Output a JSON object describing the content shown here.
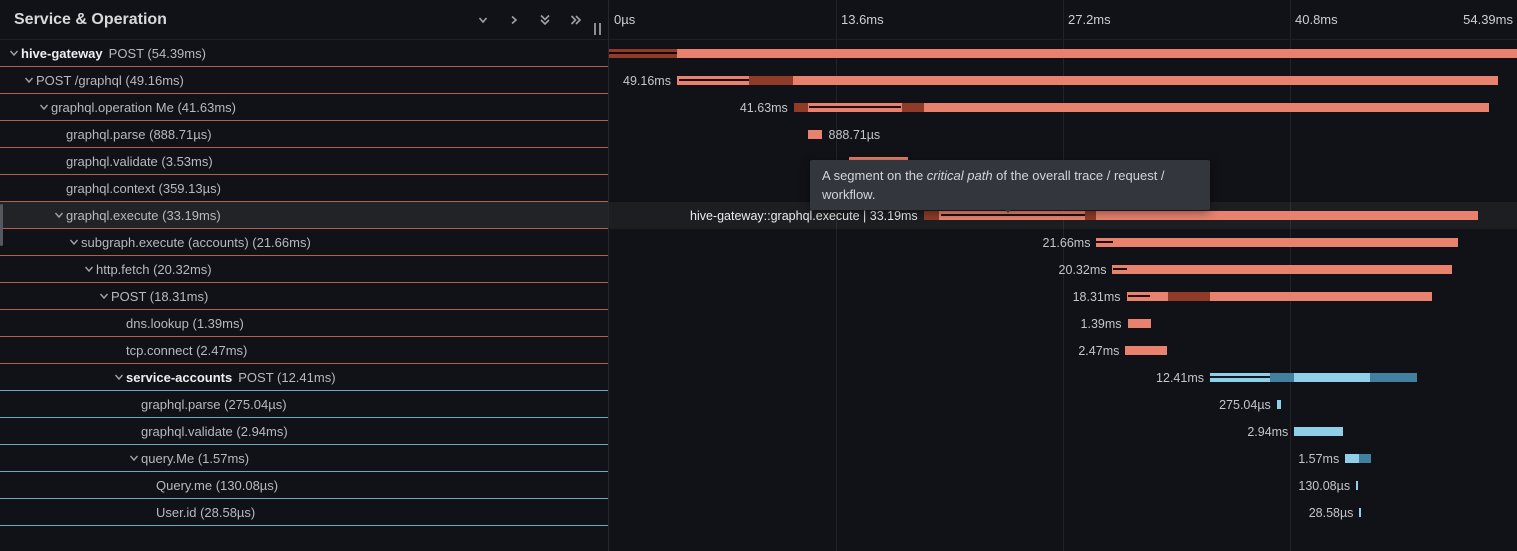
{
  "left_panel": {
    "title": "Service & Operation"
  },
  "toolbar": {
    "items": [
      {
        "name": "chevron-down-icon"
      },
      {
        "name": "chevron-right-icon"
      },
      {
        "name": "double-chevron-down-icon"
      },
      {
        "name": "double-chevron-right-icon"
      }
    ]
  },
  "colors": {
    "bar_red": "#e8826e",
    "bar_red_dark": "#8f3b28",
    "bar_blue": "#8fd0e8",
    "bar_blue_dark": "#41809f",
    "border_red": "#b3604e",
    "border_blue": "#6fa8c2",
    "background": "#111217"
  },
  "timeline": {
    "max_ms": 54.39,
    "ticks": [
      {
        "label": "0µs",
        "pct": 0,
        "align": "left"
      },
      {
        "label": "13.6ms",
        "pct": 25,
        "align": "mid"
      },
      {
        "label": "27.2ms",
        "pct": 50,
        "align": "mid"
      },
      {
        "label": "40.8ms",
        "pct": 75,
        "align": "mid"
      },
      {
        "label": "54.39ms",
        "pct": 100,
        "align": "right"
      }
    ],
    "gridlines_pct": [
      25,
      50,
      75
    ]
  },
  "tooltip": {
    "prefix": "A segment on the ",
    "em": "critical path",
    "suffix": " of the overall trace / request / workflow."
  },
  "rows": [
    {
      "depth": 0,
      "expandable": true,
      "service": "hive-gateway",
      "label": "POST (54.39ms)",
      "color": "red",
      "hovered": false,
      "bar": {
        "start": 0,
        "dur": 54.39
      },
      "dark": [
        [
          0,
          4.05
        ]
      ],
      "crit": [
        [
          0,
          4.05
        ]
      ],
      "tl_label": null,
      "side": "left",
      "bright": false
    },
    {
      "depth": 1,
      "expandable": true,
      "service": null,
      "label": "POST /graphql (49.16ms)",
      "color": "red",
      "hovered": false,
      "bar": {
        "start": 4.07,
        "dur": 49.16
      },
      "dark": [
        [
          8.4,
          2.65
        ]
      ],
      "crit": [
        [
          4.2,
          4.2
        ]
      ],
      "tl_label": "49.16ms",
      "side": "left",
      "bright": false
    },
    {
      "depth": 2,
      "expandable": true,
      "service": null,
      "label": "graphql.operation Me (41.63ms)",
      "color": "red",
      "hovered": false,
      "bar": {
        "start": 11.07,
        "dur": 41.63
      },
      "dark": [
        [
          11.1,
          0.85
        ],
        [
          17.55,
          1.3
        ]
      ],
      "crit": [
        [
          12.0,
          5.5
        ]
      ],
      "tl_label": "41.63ms",
      "side": "left",
      "bright": false
    },
    {
      "depth": 3,
      "expandable": false,
      "service": null,
      "label": "graphql.parse (888.71µs)",
      "color": "red",
      "hovered": false,
      "bar": {
        "start": 11.9,
        "dur": 0.889
      },
      "dark": [],
      "crit": [],
      "tl_label": "888.71µs",
      "side": "right",
      "bright": false
    },
    {
      "depth": 3,
      "expandable": false,
      "service": null,
      "label": "graphql.validate (3.53ms)",
      "color": "red",
      "hovered": false,
      "bar": {
        "start": 14.36,
        "dur": 3.53
      },
      "dark": [],
      "crit": [],
      "tl_label": null,
      "side": "left",
      "bright": false
    },
    {
      "depth": 3,
      "expandable": false,
      "service": null,
      "label": "graphql.context (359.13µs)",
      "color": "red",
      "hovered": false,
      "bar": {
        "start": 18.0,
        "dur": 0.359
      },
      "dark": [],
      "crit": [],
      "tl_label": null,
      "side": "left",
      "bright": false
    },
    {
      "depth": 3,
      "expandable": true,
      "service": null,
      "label": "graphql.execute (33.19ms)",
      "color": "red",
      "hovered": true,
      "bar": {
        "start": 18.85,
        "dur": 33.19
      },
      "dark": [
        [
          18.85,
          0.9
        ],
        [
          28.5,
          0.7
        ]
      ],
      "crit": [
        [
          19.9,
          8.6
        ]
      ],
      "tl_label": "hive-gateway::graphql.execute | 33.19ms",
      "side": "left",
      "bright": true
    },
    {
      "depth": 4,
      "expandable": true,
      "service": null,
      "label": "subgraph.execute (accounts) (21.66ms)",
      "color": "red",
      "hovered": false,
      "bar": {
        "start": 29.2,
        "dur": 21.66
      },
      "dark": [],
      "crit": [
        [
          29.2,
          1.0
        ]
      ],
      "tl_label": "21.66ms",
      "side": "left",
      "bright": false
    },
    {
      "depth": 5,
      "expandable": true,
      "service": null,
      "label": "http.fetch (20.32ms)",
      "color": "red",
      "hovered": false,
      "bar": {
        "start": 30.16,
        "dur": 20.32
      },
      "dark": [],
      "crit": [
        [
          30.2,
          0.85
        ]
      ],
      "tl_label": "20.32ms",
      "side": "left",
      "bright": false
    },
    {
      "depth": 6,
      "expandable": true,
      "service": null,
      "label": "POST (18.31ms)",
      "color": "red",
      "hovered": false,
      "bar": {
        "start": 31.0,
        "dur": 18.31
      },
      "dark": [
        [
          33.5,
          2.5
        ]
      ],
      "crit": [
        [
          31.1,
          1.3
        ]
      ],
      "tl_label": "18.31ms",
      "side": "left",
      "bright": false
    },
    {
      "depth": 7,
      "expandable": false,
      "service": null,
      "label": "dns.lookup (1.39ms)",
      "color": "red",
      "hovered": false,
      "bar": {
        "start": 31.06,
        "dur": 1.39
      },
      "dark": [],
      "crit": [],
      "tl_label": "1.39ms",
      "side": "left",
      "bright": false
    },
    {
      "depth": 7,
      "expandable": false,
      "service": null,
      "label": "tcp.connect (2.47ms)",
      "color": "red",
      "hovered": false,
      "bar": {
        "start": 30.93,
        "dur": 2.47
      },
      "dark": [],
      "crit": [],
      "tl_label": "2.47ms",
      "side": "left",
      "bright": false
    },
    {
      "depth": 7,
      "expandable": true,
      "service": "service-accounts",
      "label": "POST (12.41ms)",
      "color": "blue",
      "hovered": false,
      "bar": {
        "start": 36.0,
        "dur": 12.41
      },
      "dark": [
        [
          39.6,
          1.45
        ],
        [
          45.6,
          2.8
        ]
      ],
      "crit": [
        [
          36.0,
          3.6
        ]
      ],
      "tl_label": "12.41ms",
      "side": "left",
      "bright": false
    },
    {
      "depth": 8,
      "expandable": false,
      "service": null,
      "label": "graphql.parse (275.04µs)",
      "color": "blue",
      "hovered": false,
      "bar": {
        "start": 40.0,
        "dur": 0.275
      },
      "dark": [],
      "crit": [],
      "tl_label": "275.04µs",
      "side": "left",
      "bright": false
    },
    {
      "depth": 8,
      "expandable": false,
      "service": null,
      "label": "graphql.validate (2.94ms)",
      "color": "blue",
      "hovered": false,
      "bar": {
        "start": 41.05,
        "dur": 2.94
      },
      "dark": [],
      "crit": [],
      "tl_label": "2.94ms",
      "side": "left",
      "bright": false
    },
    {
      "depth": 8,
      "expandable": true,
      "service": null,
      "label": "query.Me (1.57ms)",
      "color": "blue",
      "hovered": false,
      "bar": {
        "start": 44.1,
        "dur": 1.57
      },
      "dark": [
        [
          44.9,
          0.77
        ]
      ],
      "crit": [],
      "tl_label": "1.57ms",
      "side": "left",
      "bright": false
    },
    {
      "depth": 9,
      "expandable": false,
      "service": null,
      "label": "Query.me (130.08µs)",
      "color": "blue",
      "hovered": false,
      "bar": {
        "start": 44.75,
        "dur": 0.13
      },
      "dark": [],
      "crit": [],
      "tl_label": "130.08µs",
      "side": "left",
      "bright": false
    },
    {
      "depth": 9,
      "expandable": false,
      "service": null,
      "label": "User.id (28.58µs)",
      "color": "blue",
      "hovered": false,
      "bar": {
        "start": 44.95,
        "dur": 0.0286
      },
      "dark": [],
      "crit": [],
      "tl_label": "28.58µs",
      "side": "left",
      "bright": false
    }
  ]
}
